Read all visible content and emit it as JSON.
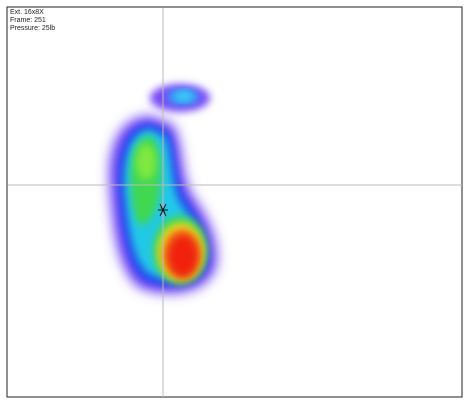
{
  "header": {
    "lines": [
      "Ext. 16x8X",
      "Frame: 251",
      "Pressure: 25lb"
    ]
  }
}
